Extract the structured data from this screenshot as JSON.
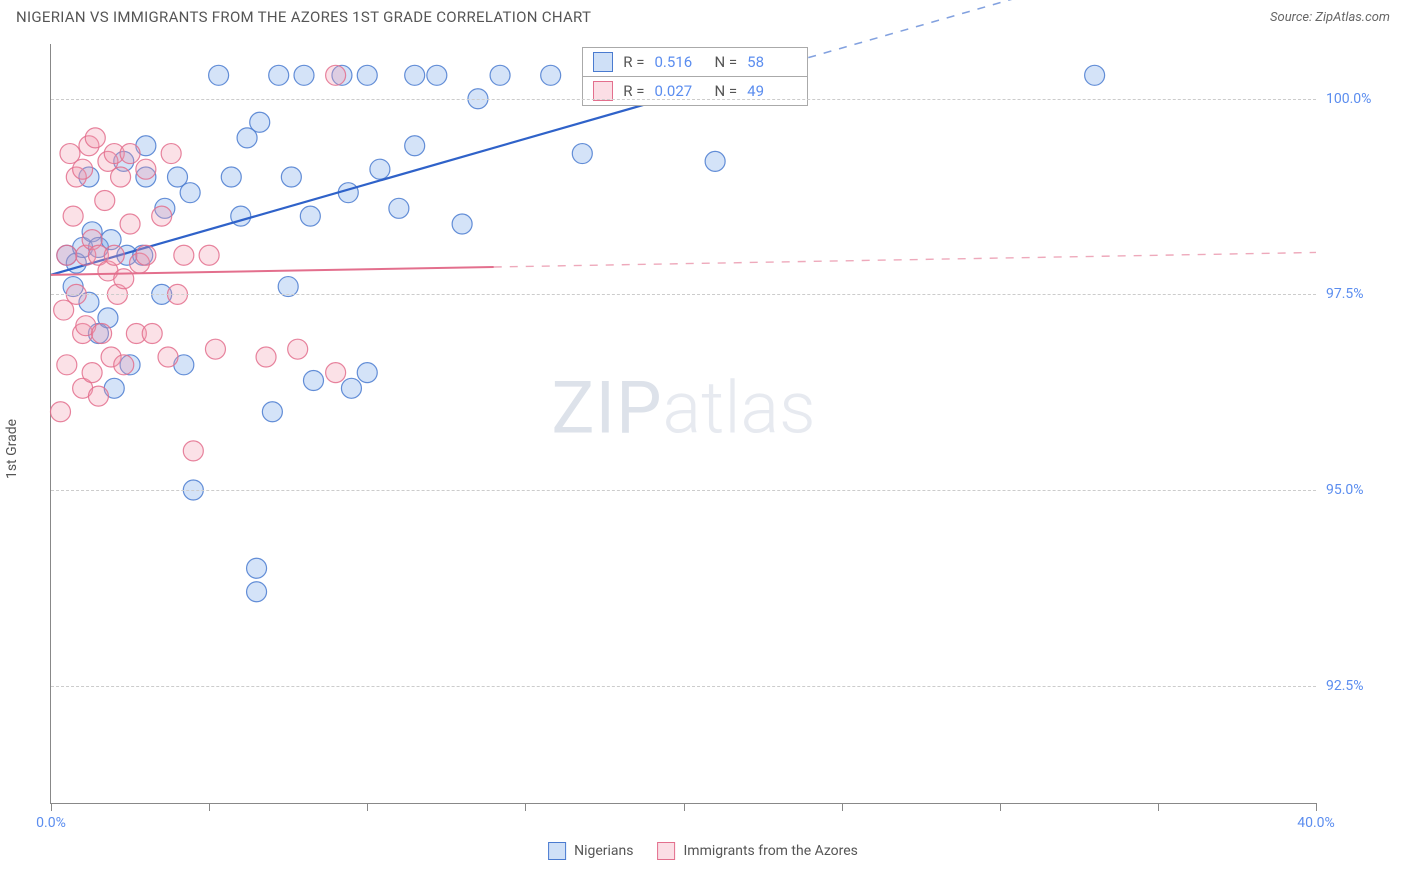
{
  "header": {
    "title": "NIGERIAN VS IMMIGRANTS FROM THE AZORES 1ST GRADE CORRELATION CHART",
    "source": "Source: ZipAtlas.com"
  },
  "chart": {
    "type": "scatter",
    "ylabel": "1st Grade",
    "xlim": [
      0,
      40
    ],
    "ylim": [
      91,
      100.7
    ],
    "x_ticks": [
      0,
      5,
      10,
      15,
      20,
      25,
      30,
      35,
      40
    ],
    "x_tick_labels": {
      "0": "0.0%",
      "40": "40.0%"
    },
    "y_ticks": [
      92.5,
      95.0,
      97.5,
      100.0
    ],
    "y_tick_labels": [
      "92.5%",
      "95.0%",
      "97.5%",
      "100.0%"
    ],
    "grid_color": "#cccccc",
    "axis_color": "#888888",
    "background_color": "#ffffff",
    "tick_label_color": "#5b8def",
    "marker_radius": 10,
    "marker_fill_opacity": 0.3,
    "marker_stroke_opacity": 0.85,
    "watermark": {
      "part1": "ZIP",
      "part2": "atlas"
    },
    "series": [
      {
        "name": "Nigerians",
        "color": "#6fa1e8",
        "stroke": "#4a7bd0",
        "R": "0.516",
        "N": "58",
        "trend": {
          "x1": 0,
          "y1": 97.75,
          "x2": 22,
          "y2": 100.3,
          "dash_from_x": 22,
          "dash_to_x": 40,
          "line_color": "#2f62c9",
          "line_width": 2.2
        },
        "points": [
          [
            0.5,
            98.0
          ],
          [
            0.7,
            97.6
          ],
          [
            0.8,
            97.9
          ],
          [
            1.0,
            98.1
          ],
          [
            1.2,
            99.0
          ],
          [
            1.2,
            97.4
          ],
          [
            1.3,
            98.3
          ],
          [
            1.5,
            97.0
          ],
          [
            1.5,
            98.1
          ],
          [
            1.8,
            97.2
          ],
          [
            1.9,
            98.2
          ],
          [
            2.0,
            96.3
          ],
          [
            2.3,
            99.2
          ],
          [
            2.4,
            98.0
          ],
          [
            2.5,
            96.6
          ],
          [
            2.9,
            98.0
          ],
          [
            3.0,
            99.4
          ],
          [
            3.0,
            99.0
          ],
          [
            3.5,
            97.5
          ],
          [
            3.6,
            98.6
          ],
          [
            4.0,
            99.0
          ],
          [
            4.2,
            96.6
          ],
          [
            4.4,
            98.8
          ],
          [
            4.5,
            95.0
          ],
          [
            5.3,
            100.3
          ],
          [
            5.7,
            99.0
          ],
          [
            6.0,
            98.5
          ],
          [
            6.2,
            99.5
          ],
          [
            6.5,
            94.0
          ],
          [
            6.5,
            93.7
          ],
          [
            6.6,
            99.7
          ],
          [
            7.0,
            96.0
          ],
          [
            7.2,
            100.3
          ],
          [
            7.5,
            97.6
          ],
          [
            7.6,
            99.0
          ],
          [
            8.0,
            100.3
          ],
          [
            8.2,
            98.5
          ],
          [
            8.3,
            96.4
          ],
          [
            9.2,
            100.3
          ],
          [
            9.4,
            98.8
          ],
          [
            9.5,
            96.3
          ],
          [
            10.0,
            100.3
          ],
          [
            10.0,
            96.5
          ],
          [
            10.4,
            99.1
          ],
          [
            11.0,
            98.6
          ],
          [
            11.5,
            100.3
          ],
          [
            11.5,
            99.4
          ],
          [
            12.2,
            100.3
          ],
          [
            13.0,
            98.4
          ],
          [
            13.5,
            100.0
          ],
          [
            14.2,
            100.3
          ],
          [
            15.8,
            100.3
          ],
          [
            16.8,
            99.3
          ],
          [
            17.5,
            100.3
          ],
          [
            18.7,
            100.3
          ],
          [
            20.5,
            100.3
          ],
          [
            21.0,
            99.2
          ],
          [
            33.0,
            100.3
          ]
        ]
      },
      {
        "name": "Immigants from the Azores",
        "display_name": "Immigrants from the Azores",
        "color": "#f29bb0",
        "stroke": "#e36f8d",
        "R": "0.027",
        "N": "49",
        "trend": {
          "x1": 0,
          "y1": 97.75,
          "x2": 14,
          "y2": 97.85,
          "dash_from_x": 14,
          "dash_to_x": 40,
          "line_color": "#e36f8d",
          "line_width": 2.0
        },
        "points": [
          [
            0.3,
            96.0
          ],
          [
            0.4,
            97.3
          ],
          [
            0.5,
            98.0
          ],
          [
            0.5,
            96.6
          ],
          [
            0.6,
            99.3
          ],
          [
            0.7,
            98.5
          ],
          [
            0.8,
            99.0
          ],
          [
            0.8,
            97.5
          ],
          [
            1.0,
            96.3
          ],
          [
            1.0,
            99.1
          ],
          [
            1.0,
            97.0
          ],
          [
            1.1,
            98.0
          ],
          [
            1.1,
            97.1
          ],
          [
            1.2,
            99.4
          ],
          [
            1.3,
            96.5
          ],
          [
            1.3,
            98.2
          ],
          [
            1.4,
            99.5
          ],
          [
            1.5,
            98.0
          ],
          [
            1.5,
            96.2
          ],
          [
            1.6,
            97.0
          ],
          [
            1.7,
            98.7
          ],
          [
            1.8,
            99.2
          ],
          [
            1.8,
            97.8
          ],
          [
            1.9,
            96.7
          ],
          [
            2.0,
            99.3
          ],
          [
            2.0,
            98.0
          ],
          [
            2.1,
            97.5
          ],
          [
            2.2,
            99.0
          ],
          [
            2.3,
            97.7
          ],
          [
            2.3,
            96.6
          ],
          [
            2.5,
            98.4
          ],
          [
            2.5,
            99.3
          ],
          [
            2.7,
            97.0
          ],
          [
            2.8,
            97.9
          ],
          [
            3.0,
            99.1
          ],
          [
            3.0,
            98.0
          ],
          [
            3.2,
            97.0
          ],
          [
            3.5,
            98.5
          ],
          [
            3.7,
            96.7
          ],
          [
            3.8,
            99.3
          ],
          [
            4.0,
            97.5
          ],
          [
            4.2,
            98.0
          ],
          [
            4.5,
            95.5
          ],
          [
            5.0,
            98.0
          ],
          [
            5.2,
            96.8
          ],
          [
            6.8,
            96.7
          ],
          [
            7.8,
            96.8
          ],
          [
            9.0,
            96.5
          ],
          [
            9.0,
            100.3
          ]
        ]
      }
    ],
    "legend": {
      "items": [
        {
          "label": "Nigerians",
          "color": "#6fa1e8",
          "stroke": "#4a7bd0"
        },
        {
          "label": "Immigrants from the Azores",
          "color": "#f29bb0",
          "stroke": "#e36f8d"
        }
      ]
    },
    "corr_box": {
      "rows": [
        {
          "color": "#6fa1e8",
          "stroke": "#4a7bd0",
          "r_label": "R =",
          "r_val": "0.516",
          "n_label": "N =",
          "n_val": "58"
        },
        {
          "color": "#f29bb0",
          "stroke": "#e36f8d",
          "r_label": "R =",
          "r_val": "0.027",
          "n_label": "N =",
          "n_val": "49"
        }
      ]
    }
  }
}
